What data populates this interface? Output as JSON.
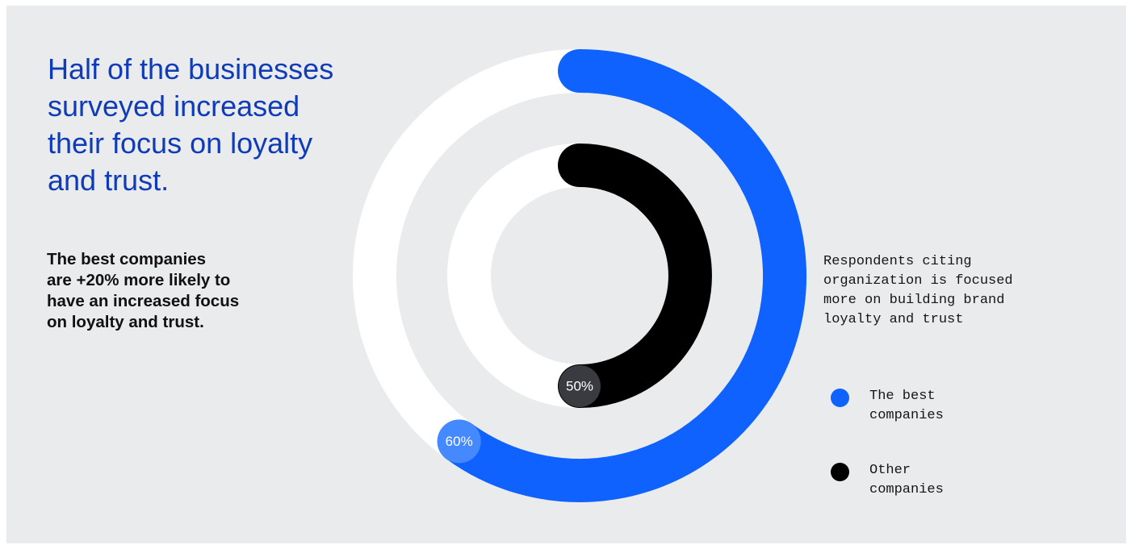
{
  "title": "Half of the businesses\nsurveyed increased\ntheir focus on loyalty\nand trust.",
  "subtitle": "The best companies\nare +20% more likely to\nhave an increased focus\non loyalty and trust.",
  "colors": {
    "background": "#eaebed",
    "track": "#ffffff",
    "best": "#0f62fe",
    "other": "#000000",
    "best_badge": "#4589ff",
    "other_badge": "#393b40"
  },
  "chart_data": {
    "type": "donut",
    "title": "Respondents citing organization is focused more on building brand loyalty and trust",
    "series": [
      {
        "name": "The best companies",
        "value": 60,
        "label": "60%",
        "color": "#0f62fe",
        "ring": "outer"
      },
      {
        "name": "Other companies",
        "value": 50,
        "label": "50%",
        "color": "#000000",
        "ring": "inner"
      }
    ],
    "max": 100,
    "direction": "clockwise-from-top",
    "legend_position": "right"
  },
  "legend": {
    "description": "Respondents citing\norganization is focused\nmore on building brand\nloyalty and trust",
    "items": [
      {
        "label": "The best\ncompanies",
        "color": "#0f62fe"
      },
      {
        "label": "Other\ncompanies",
        "color": "#000000"
      }
    ]
  }
}
